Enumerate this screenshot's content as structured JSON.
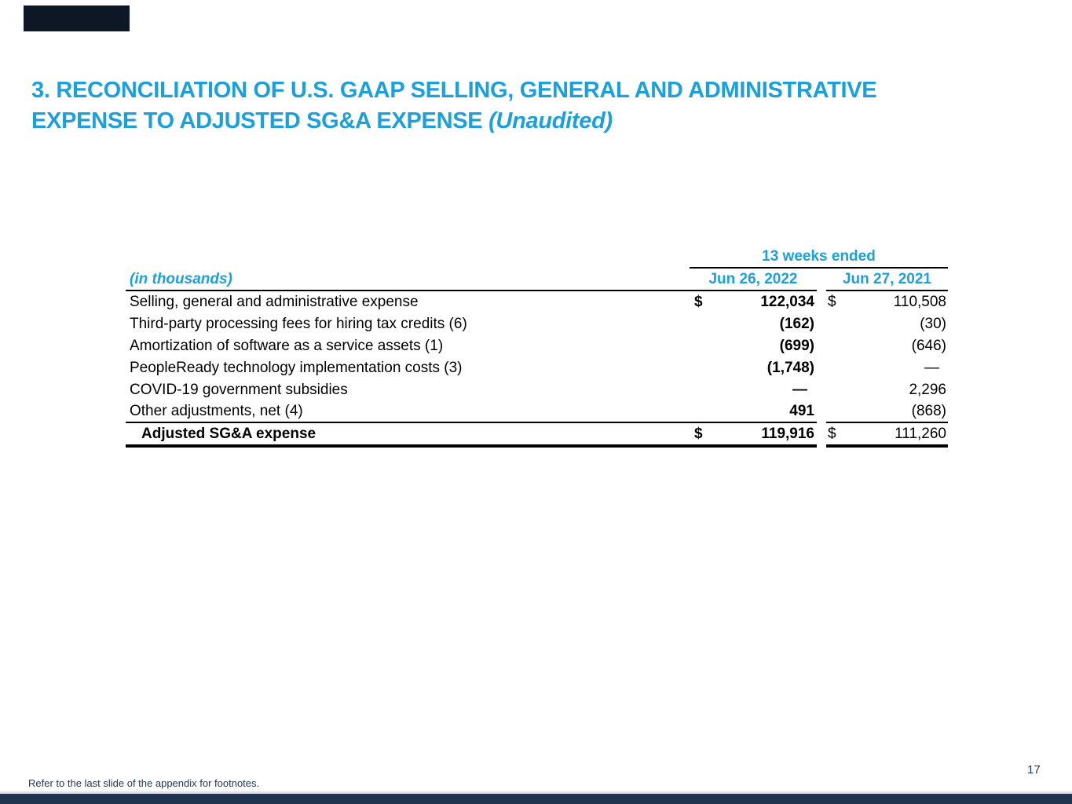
{
  "colors": {
    "accent_blue": "#1ba0dc",
    "navy_bar": "#1e3450",
    "logo_box": "#0e1726",
    "text_black": "#000000"
  },
  "header": {
    "title_line1": "3. RECONCILIATION OF U.S. GAAP SELLING, GENERAL AND ADMINISTRATIVE",
    "title_line2_main": "EXPENSE TO ADJUSTED SG&A EXPENSE ",
    "title_line2_italic": "(Unaudited)"
  },
  "table": {
    "period_header": "13 weeks ended",
    "unit_note": "(in thousands)",
    "columns": [
      "Jun 26, 2022",
      "Jun 27, 2021"
    ],
    "rows": [
      {
        "label": "Selling, general and administrative expense",
        "cur1": "$",
        "v1": "122,034",
        "cur2": "$",
        "v2": "110,508"
      },
      {
        "label": "Third-party processing fees for hiring tax credits (6)",
        "cur1": "",
        "v1": "(162)",
        "cur2": "",
        "v2": "(30)"
      },
      {
        "label": "Amortization of software as a service assets (1)",
        "cur1": "",
        "v1": "(699)",
        "cur2": "",
        "v2": "(646)"
      },
      {
        "label": "PeopleReady technology implementation costs (3)",
        "cur1": "",
        "v1": "(1,748)",
        "cur2": "",
        "v2": "—"
      },
      {
        "label": "COVID-19 government subsidies",
        "cur1": "",
        "v1": "—",
        "cur2": "",
        "v2": "2,296"
      },
      {
        "label": "Other adjustments, net (4)",
        "cur1": "",
        "v1": "491",
        "cur2": "",
        "v2": "(868)"
      }
    ],
    "total": {
      "label": "Adjusted SG&A expense",
      "cur1": "$",
      "v1": "119,916",
      "cur2": "$",
      "v2": "111,260"
    }
  },
  "footer": {
    "footnote": "Refer to the last slide of the appendix for footnotes.",
    "page_number": "17"
  }
}
